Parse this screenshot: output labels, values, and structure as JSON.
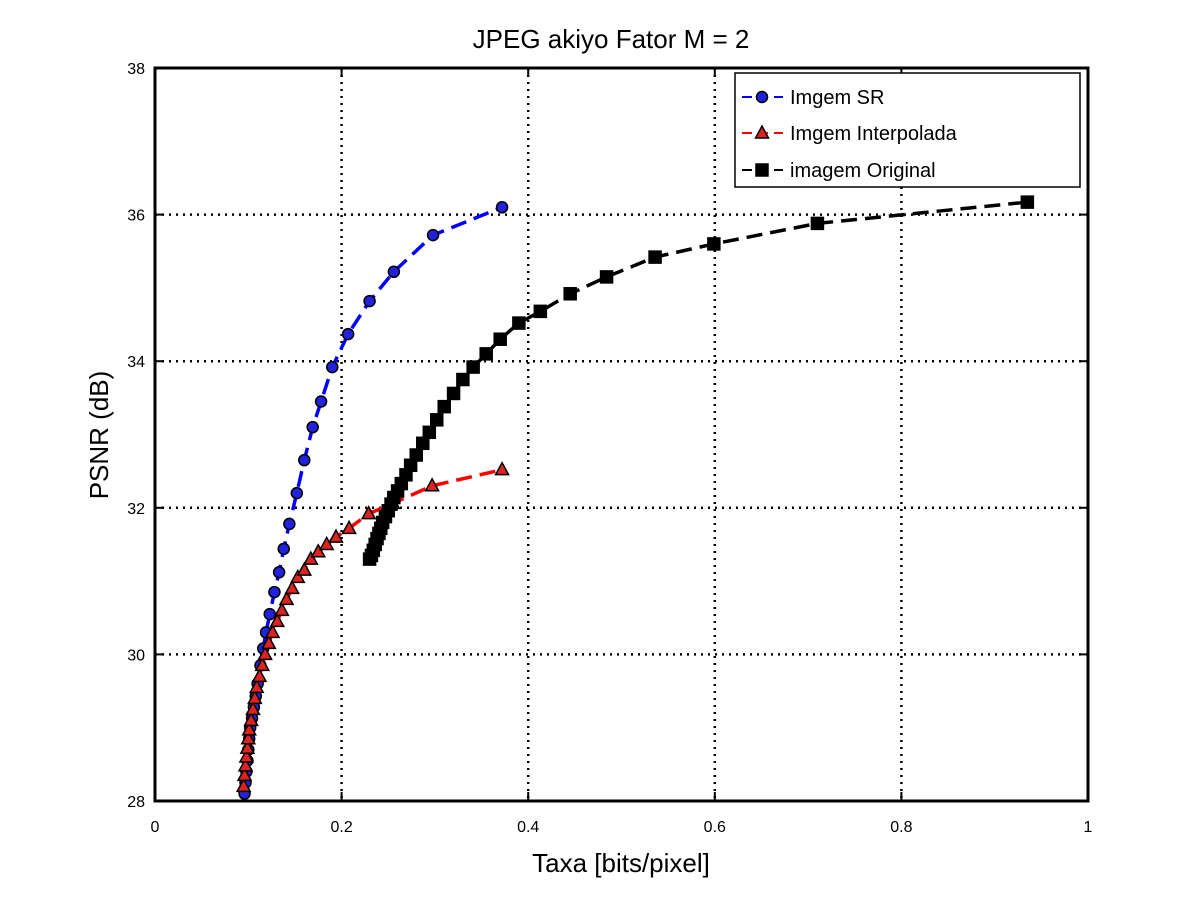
{
  "chart_data": {
    "type": "line",
    "title": "JPEG akiyo Fator M = 2",
    "xlabel": "Taxa [bits/pixel]",
    "ylabel": "PSNR (dB)",
    "xlim": [
      0,
      1
    ],
    "ylim": [
      28,
      38
    ],
    "xticks": [
      0,
      0.2,
      0.4,
      0.6,
      0.8,
      1
    ],
    "yticks": [
      28,
      30,
      32,
      34,
      36,
      38
    ],
    "xtick_labels": [
      "0",
      "0.2",
      "0.4",
      "0.6",
      "0.8",
      "1"
    ],
    "ytick_labels": [
      "28",
      "30",
      "32",
      "34",
      "36",
      "38"
    ],
    "grid": true,
    "legend_position": "top-right",
    "series": [
      {
        "name": "Imgem SR",
        "color": "#0000ff",
        "marker": "circle",
        "x": [
          0.096,
          0.097,
          0.098,
          0.099,
          0.1,
          0.101,
          0.102,
          0.104,
          0.106,
          0.108,
          0.11,
          0.113,
          0.116,
          0.119,
          0.123,
          0.128,
          0.133,
          0.138,
          0.144,
          0.152,
          0.16,
          0.169,
          0.178,
          0.19,
          0.207,
          0.23,
          0.256,
          0.298,
          0.372
        ],
        "y": [
          28.1,
          28.25,
          28.4,
          28.55,
          28.7,
          28.85,
          29.0,
          29.13,
          29.28,
          29.43,
          29.6,
          29.85,
          30.08,
          30.3,
          30.55,
          30.85,
          31.12,
          31.44,
          31.78,
          32.2,
          32.65,
          33.1,
          33.45,
          33.92,
          34.37,
          34.82,
          35.22,
          35.72,
          36.1
        ]
      },
      {
        "name": "Imgem Interpolada",
        "color": "#ff0000",
        "marker": "triangle",
        "x": [
          0.095,
          0.096,
          0.097,
          0.098,
          0.099,
          0.1,
          0.101,
          0.103,
          0.105,
          0.107,
          0.109,
          0.112,
          0.115,
          0.118,
          0.122,
          0.126,
          0.131,
          0.136,
          0.141,
          0.147,
          0.153,
          0.16,
          0.167,
          0.175,
          0.184,
          0.194,
          0.208,
          0.229,
          0.255,
          0.297,
          0.372
        ],
        "y": [
          28.2,
          28.35,
          28.48,
          28.6,
          28.72,
          28.85,
          28.97,
          29.1,
          29.25,
          29.4,
          29.55,
          29.7,
          29.85,
          30.0,
          30.15,
          30.3,
          30.45,
          30.6,
          30.75,
          30.9,
          31.05,
          31.15,
          31.3,
          31.4,
          31.5,
          31.6,
          31.72,
          31.92,
          32.06,
          32.3,
          32.52
        ]
      },
      {
        "name": "imagem Original",
        "color": "#000000",
        "marker": "square",
        "x": [
          0.23,
          0.232,
          0.234,
          0.236,
          0.238,
          0.24,
          0.242,
          0.244,
          0.247,
          0.25,
          0.253,
          0.256,
          0.26,
          0.264,
          0.269,
          0.274,
          0.28,
          0.287,
          0.294,
          0.302,
          0.31,
          0.32,
          0.33,
          0.341,
          0.355,
          0.37,
          0.39,
          0.413,
          0.445,
          0.484,
          0.536,
          0.599,
          0.71,
          0.935
        ],
        "y": [
          31.3,
          31.35,
          31.42,
          31.5,
          31.58,
          31.65,
          31.72,
          31.8,
          31.88,
          31.96,
          32.05,
          32.14,
          32.23,
          32.33,
          32.45,
          32.58,
          32.72,
          32.88,
          33.03,
          33.2,
          33.38,
          33.56,
          33.75,
          33.92,
          34.1,
          34.3,
          34.52,
          34.68,
          34.92,
          35.15,
          35.42,
          35.6,
          35.88,
          36.17
        ]
      }
    ]
  }
}
